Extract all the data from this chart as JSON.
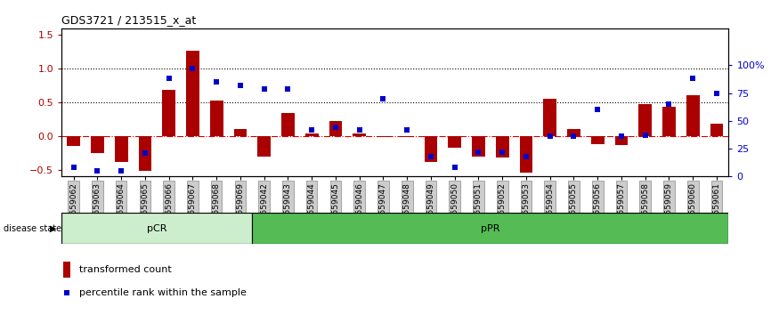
{
  "title": "GDS3721 / 213515_x_at",
  "samples": [
    "GSM559062",
    "GSM559063",
    "GSM559064",
    "GSM559065",
    "GSM559066",
    "GSM559067",
    "GSM559068",
    "GSM559069",
    "GSM559042",
    "GSM559043",
    "GSM559044",
    "GSM559045",
    "GSM559046",
    "GSM559047",
    "GSM559048",
    "GSM559049",
    "GSM559050",
    "GSM559051",
    "GSM559052",
    "GSM559053",
    "GSM559054",
    "GSM559055",
    "GSM559056",
    "GSM559057",
    "GSM559058",
    "GSM559059",
    "GSM559060",
    "GSM559061"
  ],
  "transformed_count": [
    -0.15,
    -0.25,
    -0.38,
    -0.52,
    0.68,
    1.27,
    0.53,
    0.11,
    -0.3,
    0.34,
    0.04,
    0.22,
    0.04,
    -0.02,
    -0.02,
    -0.38,
    -0.18,
    -0.3,
    -0.32,
    -0.55,
    0.55,
    0.11,
    -0.12,
    -0.14,
    0.47,
    0.44,
    0.6,
    0.18
  ],
  "percentile_rank": [
    8,
    5,
    5,
    21,
    88,
    97,
    85,
    82,
    79,
    79,
    42,
    44,
    42,
    70,
    42,
    18,
    8,
    22,
    22,
    18,
    36,
    36,
    60,
    36,
    37,
    65,
    88,
    75
  ],
  "pCR_count": 8,
  "pPR_count": 20,
  "ylim_left": [
    -0.6,
    1.6
  ],
  "ylim_right": [
    0,
    133.33
  ],
  "right_ticks": [
    0,
    25,
    50,
    75,
    100
  ],
  "right_tick_labels": [
    "0",
    "25",
    "50",
    "75",
    "100%"
  ],
  "left_ticks": [
    -0.5,
    0.0,
    0.5,
    1.0,
    1.5
  ],
  "hline_y": [
    0.5,
    1.0
  ],
  "bar_color": "#aa0000",
  "scatter_color": "#0000cc",
  "zero_line_color": "#cc0000",
  "background_color": "#ffffff",
  "title_fontsize": 9,
  "tick_label_fontsize": 6.5,
  "pCR_color": "#cceecc",
  "pPR_color": "#55bb55",
  "disease_state_label": "disease state",
  "legend_bar_label": "transformed count",
  "legend_scatter_label": "percentile rank within the sample"
}
